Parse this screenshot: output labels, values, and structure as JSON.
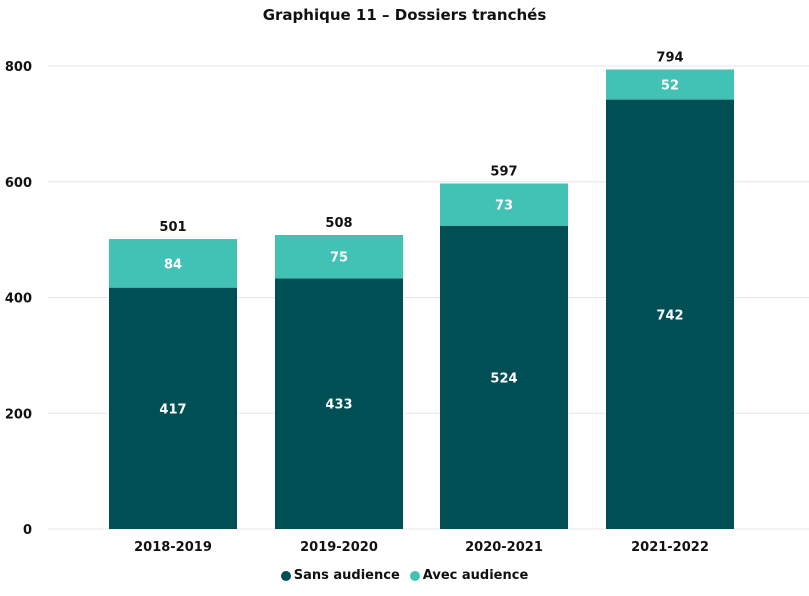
{
  "chart_data": {
    "type": "bar",
    "stacked": true,
    "title": "Graphique 11 – Dossiers tranchés",
    "categories": [
      "2018-2019",
      "2019-2020",
      "2020-2021",
      "2021-2022"
    ],
    "series": [
      {
        "name": "Sans audience",
        "values": [
          417,
          433,
          524,
          742
        ],
        "color": "#004f55"
      },
      {
        "name": "Avec audience",
        "values": [
          84,
          75,
          73,
          52
        ],
        "color": "#42c1b5"
      }
    ],
    "totals": [
      501,
      508,
      597,
      794
    ],
    "yticks": [
      0,
      200,
      400,
      600,
      800
    ],
    "ylim": [
      0,
      800
    ],
    "grid": true,
    "legend": "bottom"
  }
}
